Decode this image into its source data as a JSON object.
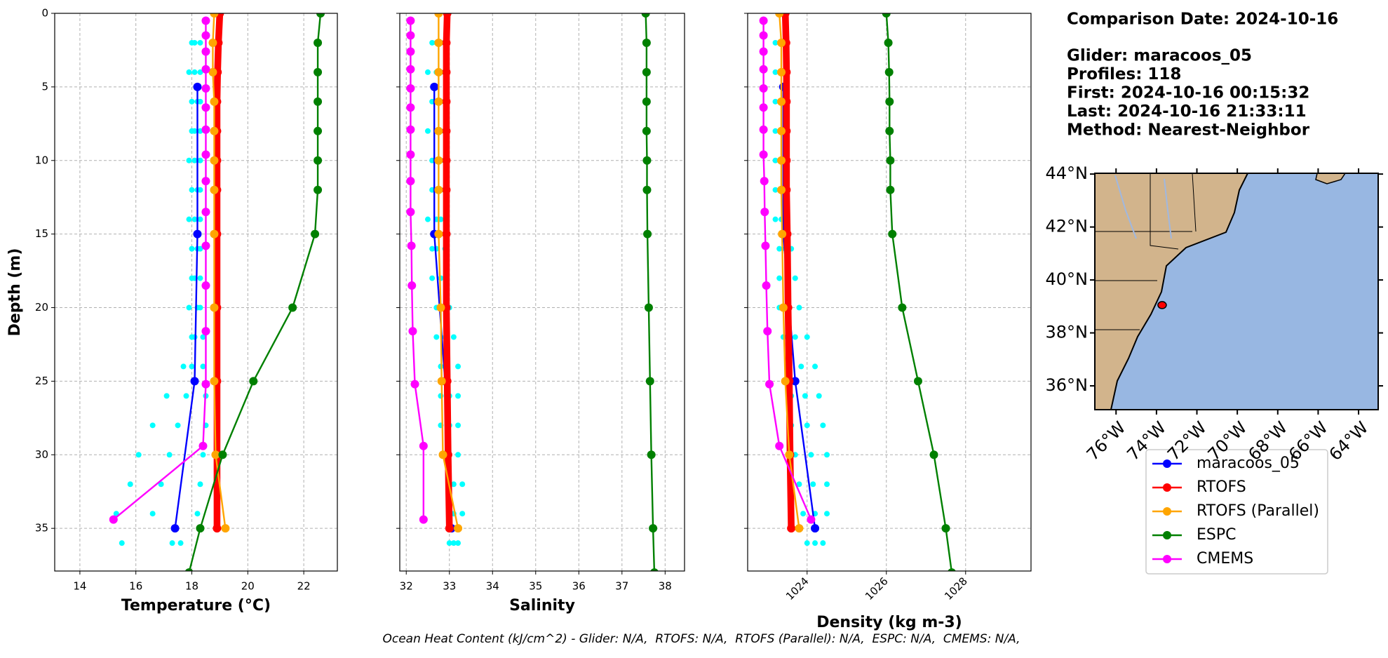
{
  "info": {
    "lines": [
      "Comparison Date: 2024-10-16",
      "Glider: maracoos_05",
      "Profiles: 118",
      "First: 2024-10-16 00:15:32",
      "Last: 2024-10-16 21:33:11",
      "Method: Nearest-Neighbor"
    ]
  },
  "footer": "Ocean Heat Content (kJ/cm^2) - Glider: N/A,  RTOFS: N/A,  RTOFS (Parallel): N/A,  ESPC: N/A,  CMEMS: N/A,",
  "chart_data": [
    {
      "type": "profile",
      "xlabel": "Temperature (°C)",
      "ylabel": "Depth (m)",
      "show_ytick_labels": true,
      "grid": true,
      "xlim": [
        13.1,
        23.2
      ],
      "xticks": [
        14,
        16,
        18,
        20,
        22
      ],
      "ylim": [
        37.9,
        0
      ],
      "yticks": [
        0,
        5,
        10,
        15,
        20,
        25,
        30,
        35
      ],
      "cloud": {
        "color": "#00ffff",
        "depth": [
          2,
          4,
          6,
          8,
          10,
          12,
          14,
          16,
          18,
          20,
          22,
          24,
          26,
          28,
          30,
          32,
          34,
          36,
          2,
          4,
          6,
          8,
          10,
          12,
          14,
          16,
          18,
          20,
          22,
          24,
          26,
          28,
          30,
          32,
          34,
          36,
          2,
          4,
          6,
          8,
          10,
          12,
          14,
          16,
          18,
          20,
          22,
          24,
          26,
          28,
          30,
          32,
          34,
          36
        ],
        "values": [
          18.0,
          17.9,
          18.0,
          18.0,
          17.9,
          18.0,
          17.9,
          18.0,
          18.0,
          17.9,
          18.0,
          17.7,
          17.1,
          16.6,
          16.1,
          15.8,
          15.3,
          15.5,
          18.1,
          18.1,
          18.2,
          18.1,
          18.1,
          18.2,
          18.1,
          18.2,
          18.1,
          18.2,
          18.1,
          18.0,
          17.8,
          17.5,
          17.2,
          16.9,
          16.6,
          17.3,
          18.3,
          18.3,
          18.3,
          18.3,
          18.3,
          18.3,
          18.3,
          18.3,
          18.3,
          18.3,
          18.4,
          18.4,
          18.5,
          18.5,
          18.4,
          18.3,
          18.2,
          17.6
        ]
      },
      "series": [
        {
          "name": "maracoos_05",
          "color": "#0000ff",
          "width": 2,
          "depth": [
            5,
            15,
            25,
            35
          ],
          "values": [
            18.2,
            18.2,
            18.1,
            17.4
          ]
        },
        {
          "name": "RTOFS",
          "color": "#ff0000",
          "width": 8,
          "depth": [
            0,
            2,
            4,
            6,
            8,
            10,
            12,
            15,
            20,
            25,
            30,
            35
          ],
          "values": [
            19.0,
            18.95,
            18.92,
            18.9,
            18.9,
            18.9,
            18.9,
            18.9,
            18.9,
            18.9,
            18.9,
            18.9
          ]
        },
        {
          "name": "RTOFS (Parallel)",
          "color": "#ffa500",
          "width": 2,
          "depth": [
            0,
            2,
            4,
            6,
            8,
            10,
            12,
            15,
            20,
            25,
            30,
            35
          ],
          "values": [
            18.8,
            18.75,
            18.75,
            18.8,
            18.8,
            18.8,
            18.8,
            18.8,
            18.8,
            18.8,
            18.85,
            19.2
          ]
        },
        {
          "name": "ESPC",
          "color": "#008000",
          "width": 2,
          "depth": [
            0,
            2,
            4,
            6,
            8,
            10,
            12,
            15,
            20,
            25,
            30,
            35,
            38
          ],
          "values": [
            22.6,
            22.5,
            22.5,
            22.5,
            22.5,
            22.5,
            22.5,
            22.4,
            21.6,
            20.2,
            19.1,
            18.3,
            17.9
          ]
        },
        {
          "name": "CMEMS",
          "color": "#ff00ff",
          "width": 2,
          "depth": [
            0.5,
            1.5,
            2.6,
            3.8,
            5.1,
            6.4,
            7.9,
            9.6,
            11.4,
            13.5,
            15.8,
            18.5,
            21.6,
            25.2,
            29.4,
            34.4
          ],
          "values": [
            18.5,
            18.5,
            18.5,
            18.5,
            18.5,
            18.5,
            18.5,
            18.5,
            18.5,
            18.5,
            18.5,
            18.5,
            18.5,
            18.5,
            18.4,
            15.2
          ]
        }
      ]
    },
    {
      "type": "profile",
      "xlabel": "Salinity",
      "show_ytick_labels": false,
      "grid": true,
      "xlim": [
        31.85,
        38.45
      ],
      "xticks": [
        32,
        33,
        34,
        35,
        36,
        37,
        38
      ],
      "ylim": [
        37.9,
        0
      ],
      "yticks": [
        0,
        5,
        10,
        15,
        20,
        25,
        30,
        35
      ],
      "cloud": {
        "color": "#00ffff",
        "depth": [
          2,
          4,
          6,
          8,
          10,
          12,
          14,
          16,
          18,
          20,
          22,
          24,
          26,
          28,
          30,
          32,
          34,
          36,
          2,
          4,
          6,
          8,
          10,
          12,
          14,
          16,
          18,
          20,
          22,
          24,
          26,
          28,
          30,
          32,
          34,
          36,
          2,
          4,
          6,
          8,
          10,
          12,
          14,
          16,
          18,
          20,
          22,
          24,
          26,
          28,
          30,
          32,
          34,
          36
        ],
        "values": [
          32.6,
          32.5,
          32.6,
          32.5,
          32.6,
          32.6,
          32.5,
          32.6,
          32.6,
          32.7,
          32.7,
          32.8,
          32.8,
          32.8,
          32.9,
          33.0,
          33.0,
          33.0,
          32.7,
          32.7,
          32.7,
          32.7,
          32.7,
          32.7,
          32.7,
          32.7,
          32.8,
          32.8,
          32.9,
          32.9,
          33.0,
          33.0,
          33.0,
          33.1,
          33.1,
          33.1,
          32.8,
          32.8,
          32.8,
          32.8,
          32.8,
          32.8,
          32.8,
          32.9,
          32.9,
          33.0,
          33.1,
          33.2,
          33.2,
          33.2,
          33.2,
          33.3,
          33.3,
          33.2
        ]
      },
      "series": [
        {
          "name": "maracoos_05",
          "color": "#0000ff",
          "width": 2,
          "depth": [
            5,
            15,
            25,
            35
          ],
          "values": [
            32.65,
            32.65,
            32.9,
            33.05
          ]
        },
        {
          "name": "RTOFS",
          "color": "#ff0000",
          "width": 8,
          "depth": [
            0,
            2,
            4,
            6,
            8,
            10,
            12,
            15,
            20,
            25,
            30,
            35
          ],
          "values": [
            32.95,
            32.93,
            32.93,
            32.93,
            32.93,
            32.93,
            32.93,
            32.93,
            32.93,
            32.95,
            32.97,
            33.0
          ]
        },
        {
          "name": "RTOFS (Parallel)",
          "color": "#ffa500",
          "width": 2,
          "depth": [
            0,
            2,
            4,
            6,
            8,
            10,
            12,
            15,
            20,
            25,
            30,
            35
          ],
          "values": [
            32.75,
            32.75,
            32.75,
            32.75,
            32.75,
            32.75,
            32.75,
            32.75,
            32.8,
            32.82,
            32.85,
            33.2
          ]
        },
        {
          "name": "ESPC",
          "color": "#008000",
          "width": 2,
          "depth": [
            0,
            2,
            4,
            6,
            8,
            10,
            12,
            15,
            20,
            25,
            30,
            35,
            38
          ],
          "values": [
            37.55,
            37.57,
            37.57,
            37.57,
            37.57,
            37.58,
            37.58,
            37.59,
            37.62,
            37.65,
            37.68,
            37.72,
            37.75
          ]
        },
        {
          "name": "CMEMS",
          "color": "#ff00ff",
          "width": 2,
          "depth": [
            0.5,
            1.5,
            2.6,
            3.8,
            5.1,
            6.4,
            7.9,
            9.6,
            11.4,
            13.5,
            15.8,
            18.5,
            21.6,
            25.2,
            29.4,
            34.4
          ],
          "values": [
            32.1,
            32.1,
            32.1,
            32.1,
            32.1,
            32.1,
            32.1,
            32.1,
            32.1,
            32.1,
            32.12,
            32.13,
            32.15,
            32.2,
            32.4,
            32.4
          ]
        }
      ]
    },
    {
      "type": "profile",
      "xlabel": "Density (kg m-3)",
      "show_ytick_labels": false,
      "grid": true,
      "xtick_rotation": 45,
      "xlim": [
        1022.5,
        1029.65
      ],
      "xticks": [
        1024,
        1026,
        1028
      ],
      "ylim": [
        37.9,
        0
      ],
      "yticks": [
        0,
        5,
        10,
        15,
        20,
        25,
        30,
        35
      ],
      "cloud": {
        "color": "#00ffff",
        "depth": [
          2,
          4,
          6,
          8,
          10,
          12,
          14,
          16,
          18,
          20,
          22,
          24,
          26,
          28,
          30,
          32,
          34,
          36,
          2,
          4,
          6,
          8,
          10,
          12,
          14,
          16,
          18,
          20,
          22,
          24,
          26,
          28,
          30,
          32,
          34,
          36,
          2,
          4,
          6,
          8,
          10,
          12,
          14,
          16,
          18,
          20,
          22,
          24,
          26,
          28,
          30,
          32,
          34,
          36
        ],
        "values": [
          1023.2,
          1023.2,
          1023.2,
          1023.2,
          1023.2,
          1023.2,
          1023.2,
          1023.3,
          1023.3,
          1023.3,
          1023.4,
          1023.5,
          1023.6,
          1023.6,
          1023.7,
          1023.8,
          1023.9,
          1024.0,
          1023.35,
          1023.35,
          1023.35,
          1023.35,
          1023.35,
          1023.35,
          1023.35,
          1023.45,
          1023.5,
          1023.55,
          1023.7,
          1023.85,
          1023.95,
          1024.0,
          1024.1,
          1024.15,
          1024.2,
          1024.2,
          1023.5,
          1023.5,
          1023.5,
          1023.5,
          1023.5,
          1023.5,
          1023.5,
          1023.6,
          1023.7,
          1023.8,
          1024.0,
          1024.2,
          1024.3,
          1024.4,
          1024.5,
          1024.5,
          1024.5,
          1024.4
        ]
      },
      "series": [
        {
          "name": "maracoos_05",
          "color": "#0000ff",
          "width": 2,
          "depth": [
            5,
            15,
            25,
            35
          ],
          "values": [
            1023.4,
            1023.4,
            1023.7,
            1024.2
          ]
        },
        {
          "name": "RTOFS",
          "color": "#ff0000",
          "width": 8,
          "depth": [
            0,
            2,
            4,
            6,
            8,
            10,
            12,
            15,
            20,
            25,
            30,
            35
          ],
          "values": [
            1023.45,
            1023.47,
            1023.48,
            1023.48,
            1023.48,
            1023.48,
            1023.48,
            1023.5,
            1023.52,
            1023.55,
            1023.57,
            1023.6
          ]
        },
        {
          "name": "RTOFS (Parallel)",
          "color": "#ffa500",
          "width": 2,
          "depth": [
            0,
            2,
            4,
            6,
            8,
            10,
            12,
            15,
            20,
            25,
            30,
            35
          ],
          "values": [
            1023.3,
            1023.35,
            1023.35,
            1023.35,
            1023.35,
            1023.35,
            1023.35,
            1023.37,
            1023.4,
            1023.45,
            1023.55,
            1023.8
          ]
        },
        {
          "name": "ESPC",
          "color": "#008000",
          "width": 2,
          "depth": [
            0,
            2,
            4,
            6,
            8,
            10,
            12,
            15,
            20,
            25,
            30,
            35,
            38
          ],
          "values": [
            1026.0,
            1026.05,
            1026.07,
            1026.08,
            1026.08,
            1026.1,
            1026.1,
            1026.15,
            1026.4,
            1026.8,
            1027.2,
            1027.5,
            1027.65
          ]
        },
        {
          "name": "CMEMS",
          "color": "#ff00ff",
          "width": 2,
          "depth": [
            0.5,
            1.5,
            2.6,
            3.8,
            5.1,
            6.4,
            7.9,
            9.6,
            11.4,
            13.5,
            15.8,
            18.5,
            21.6,
            25.2,
            29.4,
            34.4
          ],
          "values": [
            1022.9,
            1022.9,
            1022.9,
            1022.9,
            1022.9,
            1022.9,
            1022.9,
            1022.9,
            1022.92,
            1022.93,
            1022.95,
            1022.97,
            1023.0,
            1023.05,
            1023.3,
            1024.1
          ]
        }
      ]
    },
    {
      "type": "map",
      "xlim": [
        -77.05,
        -63.03
      ],
      "ylim": [
        35.1,
        44.03
      ],
      "xticks": [
        {
          "value": -76,
          "label": "76°W"
        },
        {
          "value": -74,
          "label": "74°W"
        },
        {
          "value": -72,
          "label": "72°W"
        },
        {
          "value": -70,
          "label": "70°W"
        },
        {
          "value": -68,
          "label": "68°W"
        },
        {
          "value": -66,
          "label": "66°W"
        },
        {
          "value": -64,
          "label": "64°W"
        }
      ],
      "yticks": [
        {
          "value": 36,
          "label": "36°N"
        },
        {
          "value": 38,
          "label": "38°N"
        },
        {
          "value": 40,
          "label": "40°N"
        },
        {
          "value": 42,
          "label": "42°N"
        },
        {
          "value": 44,
          "label": "44°N"
        }
      ],
      "track": {
        "color": "#ff0000",
        "lon": [
          -73.72
        ],
        "lat": [
          39.05
        ]
      }
    }
  ]
}
